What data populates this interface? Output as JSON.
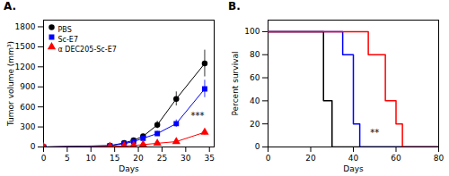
{
  "chart_data": [
    {
      "type": "line",
      "title": "A.",
      "xlabel": "Days",
      "ylabel": "Tumor volume (mm³)",
      "xlim": [
        0,
        36
      ],
      "ylim": [
        0,
        1900
      ],
      "xticks": [
        0,
        5,
        10,
        15,
        20,
        25,
        30,
        35
      ],
      "yticks": [
        0,
        300,
        600,
        900,
        1200,
        1500,
        1800
      ],
      "legend": "upper left",
      "x": [
        0,
        14,
        17,
        19,
        21,
        24,
        28,
        34
      ],
      "series": [
        {
          "name": "PBS",
          "color": "#000000",
          "marker": "circle",
          "values": [
            0,
            20,
            60,
            100,
            160,
            330,
            720,
            1250
          ],
          "yerr": [
            0,
            5,
            12,
            18,
            28,
            55,
            105,
            200
          ]
        },
        {
          "name": "Sc-E7",
          "color": "#0000ff",
          "marker": "square",
          "values": [
            0,
            18,
            50,
            80,
            130,
            200,
            350,
            870
          ],
          "yerr": [
            0,
            4,
            10,
            15,
            22,
            35,
            55,
            130
          ]
        },
        {
          "name": "α DEC205-Sc-E7",
          "color": "#ff0000",
          "marker": "triangle",
          "values": [
            0,
            8,
            15,
            22,
            35,
            55,
            80,
            220
          ],
          "yerr": [
            0,
            2,
            4,
            6,
            8,
            12,
            18,
            45
          ]
        }
      ],
      "annotations": [
        {
          "text": "***",
          "x": 32.5,
          "y": 420
        }
      ]
    },
    {
      "type": "line",
      "title": "B.",
      "xlabel": "Days",
      "ylabel": "Percent survival",
      "xlim": [
        0,
        80
      ],
      "ylim": [
        0,
        110
      ],
      "xticks": [
        0,
        20,
        40,
        60,
        80
      ],
      "yticks": [
        0,
        20,
        40,
        60,
        80,
        100
      ],
      "series": [
        {
          "color": "#000000",
          "x": [
            0,
            26,
            26,
            30,
            30,
            80
          ],
          "values": [
            100,
            100,
            40,
            40,
            0,
            0
          ]
        },
        {
          "color": "#0000ff",
          "x": [
            0,
            35,
            35,
            40,
            40,
            43,
            43,
            80
          ],
          "values": [
            100,
            100,
            80,
            80,
            20,
            20,
            0,
            0
          ]
        },
        {
          "color": "#ff0000",
          "x": [
            0,
            47,
            47,
            55,
            55,
            60,
            60,
            63,
            63,
            80
          ],
          "values": [
            100,
            100,
            80,
            80,
            40,
            40,
            20,
            20,
            0,
            0
          ]
        }
      ],
      "annotations": [
        {
          "text": "**",
          "x": 50,
          "y": 10
        }
      ]
    }
  ]
}
